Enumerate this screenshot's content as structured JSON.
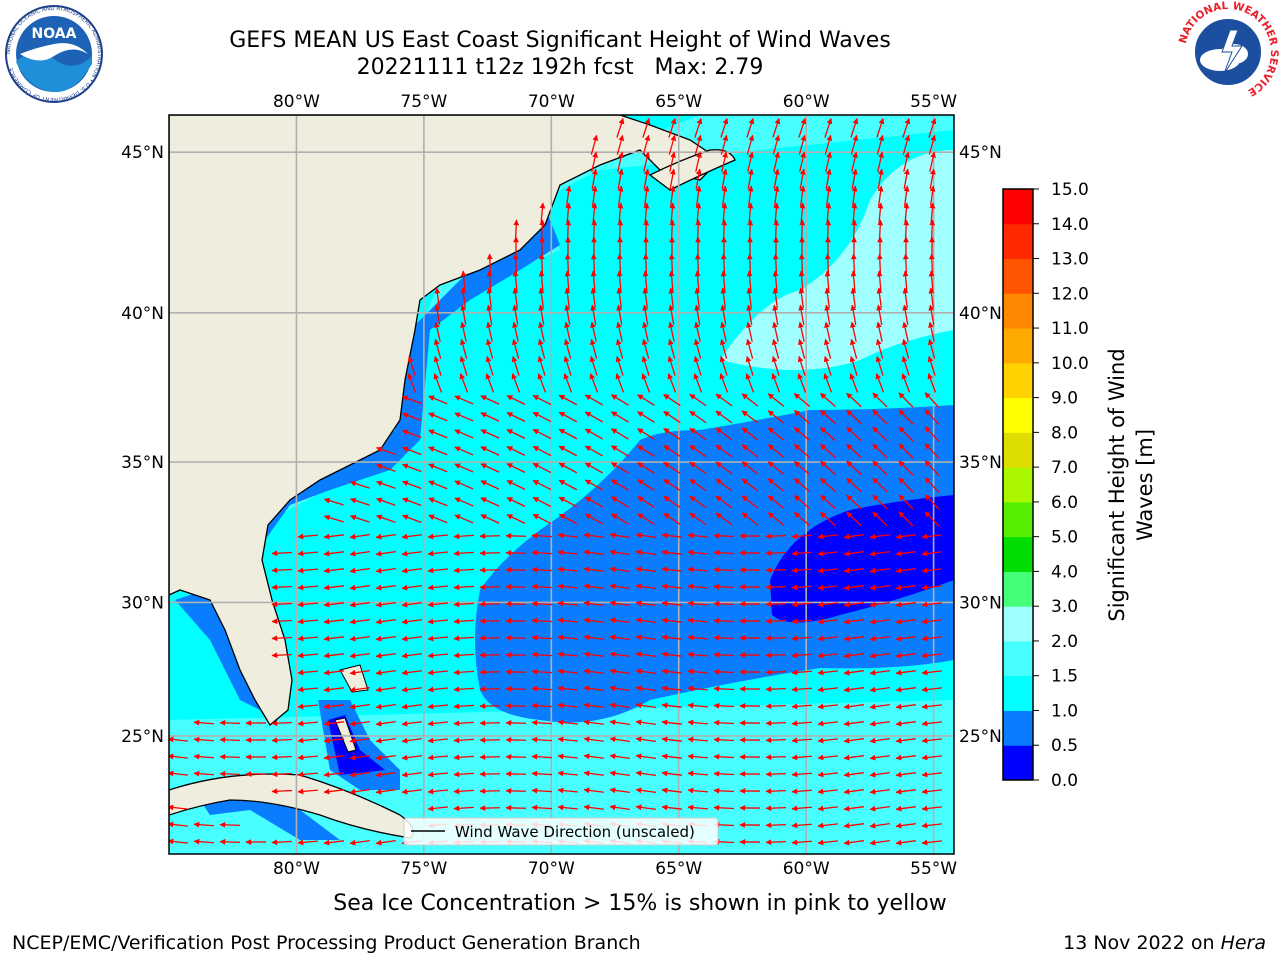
{
  "header": {
    "title_line1": "GEFS MEAN US East Coast Significant Height of Wind Waves",
    "title_line2": "20221111 t12z 192h fcst   Max: 2.79"
  },
  "logos": {
    "noaa_text": "NOAA",
    "noaa_ring_text": "NATIONAL OCEANIC AND ATMOSPHERIC ADMINISTRATION • U.S. DEPARTMENT OF COMMERCE",
    "nws_ring_text": "NATIONAL WEATHER SERVICE"
  },
  "map": {
    "lon_labels": [
      "80°W",
      "75°W",
      "70°W",
      "65°W",
      "60°W",
      "55°W"
    ],
    "lat_labels": [
      "45°N",
      "40°N",
      "35°N",
      "30°N",
      "25°N"
    ],
    "lon_ticks": [
      -80,
      -75,
      -70,
      -65,
      -60,
      -55
    ],
    "lat_ticks": [
      45,
      40,
      35,
      30,
      25
    ],
    "lon_range": [
      -85,
      -54.2
    ],
    "lat_range": [
      20.4,
      46.1
    ],
    "colors": {
      "land": "#efedde",
      "grid": "#b0b0b0",
      "arrow": "#ff0000",
      "coast": "#000000"
    },
    "legend_label": "Wind Wave Direction (unscaled)"
  },
  "colorbar": {
    "label_line1": "Significant Height of Wind",
    "label_line2": "Waves [m]",
    "ticks": [
      "0.0",
      "0.5",
      "1.0",
      "1.5",
      "2.0",
      "3.0",
      "4.0",
      "5.0",
      "6.0",
      "7.0",
      "8.0",
      "9.0",
      "10.0",
      "11.0",
      "12.0",
      "13.0",
      "14.0",
      "15.0"
    ],
    "colors": [
      "#0000ff",
      "#0a7dff",
      "#00ffff",
      "#48ffff",
      "#a0ffff",
      "#44ff77",
      "#00dd00",
      "#55ee00",
      "#aaf700",
      "#dddd00",
      "#ffff00",
      "#ffd200",
      "#ffaa00",
      "#ff8800",
      "#ff5500",
      "#ff2a00",
      "#ff0000"
    ]
  },
  "caption": "Sea Ice Concentration > 15% is shown in pink to yellow",
  "footer": {
    "left": "NCEP/EMC/Verification Post Processing Product Generation Branch",
    "date_prefix": "13 Nov 2022 on",
    "machine": "Hera"
  }
}
